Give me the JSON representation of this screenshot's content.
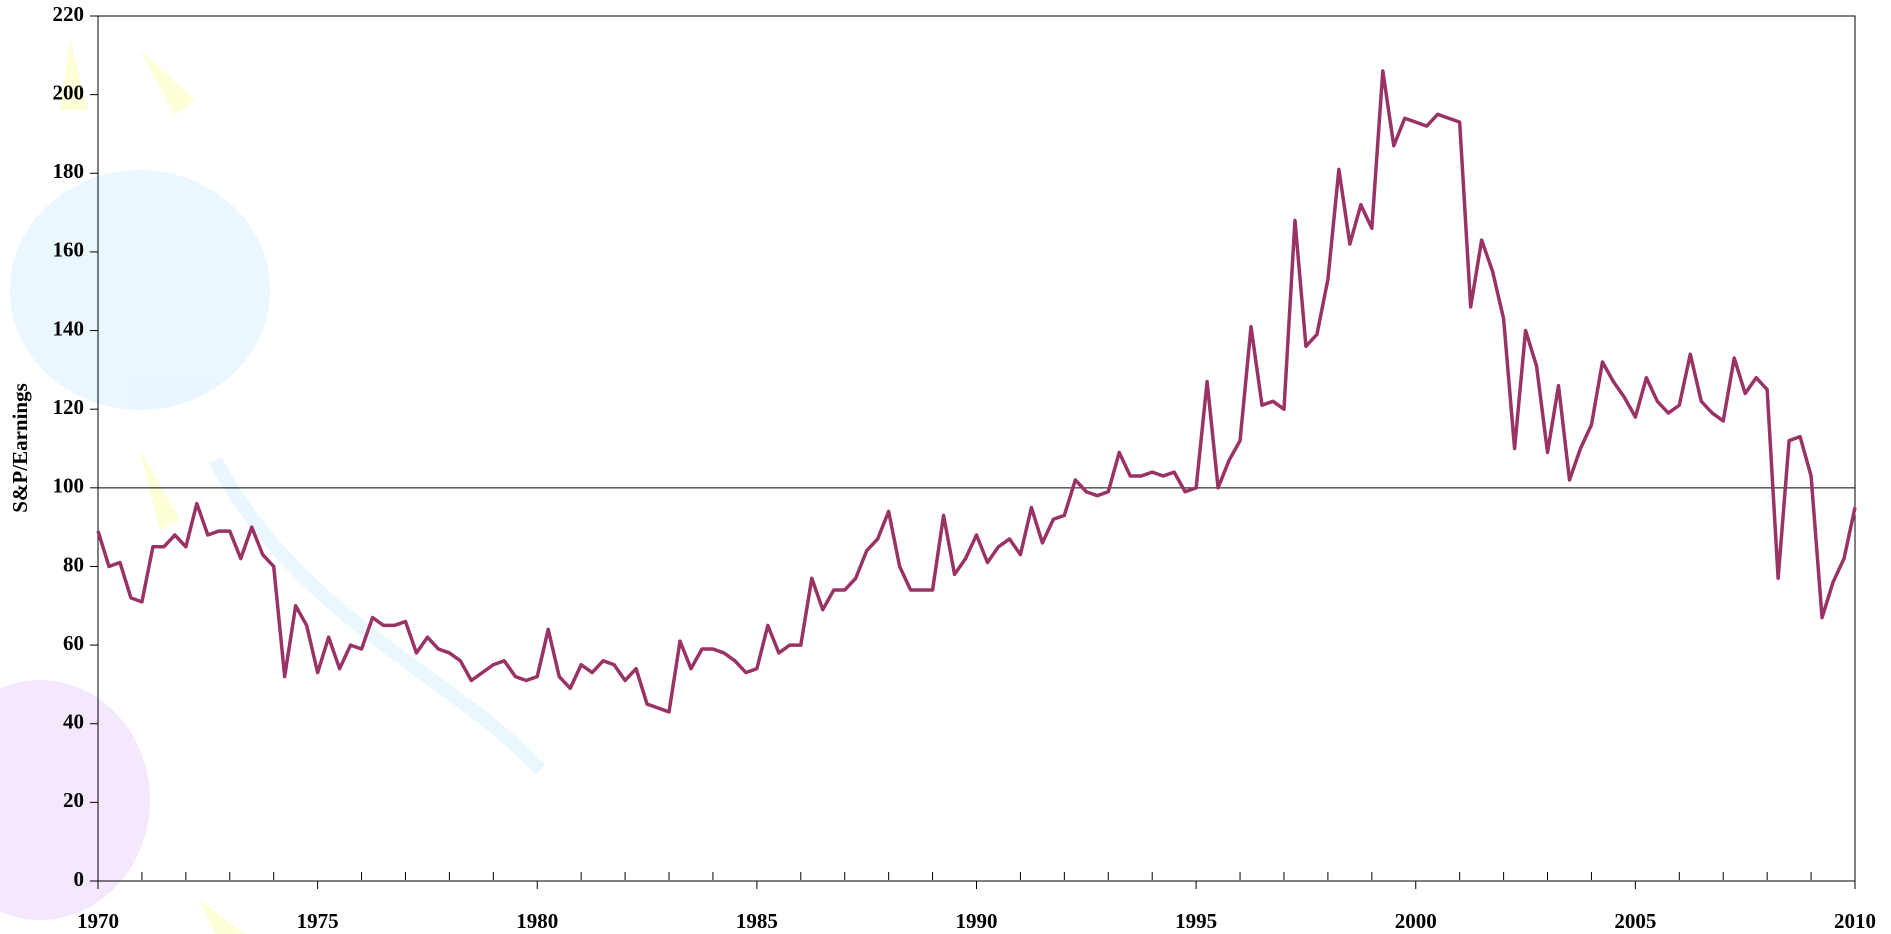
{
  "chart_data": {
    "type": "line",
    "y_label": "S&P/Earnings",
    "x": [
      1970,
      1970.25,
      1970.5,
      1970.75,
      1971,
      1971.25,
      1971.5,
      1971.75,
      1972,
      1972.25,
      1972.5,
      1972.75,
      1973,
      1973.25,
      1973.5,
      1973.75,
      1974,
      1974.25,
      1974.5,
      1974.75,
      1975,
      1975.25,
      1975.5,
      1975.75,
      1976,
      1976.25,
      1976.5,
      1976.75,
      1977,
      1977.25,
      1977.5,
      1977.75,
      1978,
      1978.25,
      1978.5,
      1978.75,
      1979,
      1979.25,
      1979.5,
      1979.75,
      1980,
      1980.25,
      1980.5,
      1980.75,
      1981,
      1981.25,
      1981.5,
      1981.75,
      1982,
      1982.25,
      1982.5,
      1982.75,
      1983,
      1983.25,
      1983.5,
      1983.75,
      1984,
      1984.25,
      1984.5,
      1984.75,
      1985,
      1985.25,
      1985.5,
      1985.75,
      1986,
      1986.25,
      1986.5,
      1986.75,
      1987,
      1987.25,
      1987.5,
      1987.75,
      1988,
      1988.25,
      1988.5,
      1988.75,
      1989,
      1989.25,
      1989.5,
      1989.75,
      1990,
      1990.25,
      1990.5,
      1990.75,
      1991,
      1991.25,
      1991.5,
      1991.75,
      1992,
      1992.25,
      1992.5,
      1992.75,
      1993,
      1993.25,
      1993.5,
      1993.75,
      1994,
      1994.25,
      1994.5,
      1994.75,
      1995,
      1995.25,
      1995.5,
      1995.75,
      1996,
      1996.25,
      1996.5,
      1996.75,
      1997,
      1997.25,
      1997.5,
      1997.75,
      1998,
      1998.25,
      1998.5,
      1998.75,
      1999,
      1999.25,
      1999.5,
      1999.75,
      2000,
      2000.25,
      2000.5,
      2000.75,
      2001,
      2001.25,
      2001.5,
      2001.75,
      2002,
      2002.25,
      2002.5,
      2002.75,
      2003,
      2003.25,
      2003.5,
      2003.75,
      2004,
      2004.25,
      2004.5,
      2004.75,
      2005,
      2005.25,
      2005.5,
      2005.75,
      2006,
      2006.25,
      2006.5,
      2006.75,
      2007,
      2007.25,
      2007.5,
      2007.75,
      2008,
      2008.25,
      2008.5,
      2008.75,
      2009,
      2009.25,
      2009.5,
      2009.75,
      2010
    ],
    "series": [
      {
        "color": "#993366",
        "values": [
          89,
          80,
          81,
          72,
          71,
          85,
          85,
          88,
          85,
          96,
          88,
          89,
          89,
          82,
          90,
          83,
          80,
          52,
          70,
          65,
          53,
          62,
          54,
          60,
          59,
          67,
          65,
          65,
          66,
          58,
          62,
          59,
          58,
          56,
          51,
          53,
          55,
          56,
          52,
          51,
          52,
          64,
          52,
          49,
          55,
          53,
          56,
          55,
          51,
          54,
          45,
          44,
          43,
          61,
          54,
          59,
          59,
          58,
          56,
          53,
          54,
          65,
          58,
          60,
          60,
          77,
          69,
          74,
          74,
          77,
          84,
          87,
          94,
          80,
          74,
          74,
          74,
          93,
          78,
          82,
          88,
          81,
          85,
          87,
          83,
          95,
          86,
          92,
          93,
          102,
          99,
          98,
          99,
          109,
          103,
          103,
          104,
          103,
          104,
          99,
          100,
          127,
          100,
          107,
          112,
          141,
          121,
          122,
          120,
          168,
          136,
          139,
          153,
          181,
          162,
          172,
          166,
          206,
          187,
          194,
          193,
          192,
          195,
          194,
          193,
          146,
          163,
          155,
          143,
          110,
          140,
          131,
          109,
          126,
          102,
          110,
          116,
          132,
          127,
          123,
          118,
          128,
          122,
          119,
          121,
          134,
          122,
          119,
          117,
          133,
          124,
          128,
          125,
          77,
          112,
          113,
          103,
          67,
          76,
          82,
          95
        ]
      }
    ],
    "xlim": [
      1970,
      2010
    ],
    "xticks": [
      1970,
      1975,
      1980,
      1985,
      1990,
      1995,
      2000,
      2005,
      2010
    ],
    "ylim": [
      0,
      220
    ],
    "yticks": [
      0,
      20,
      40,
      60,
      80,
      100,
      120,
      140,
      160,
      180,
      200,
      220
    ],
    "reference_line": 100
  }
}
